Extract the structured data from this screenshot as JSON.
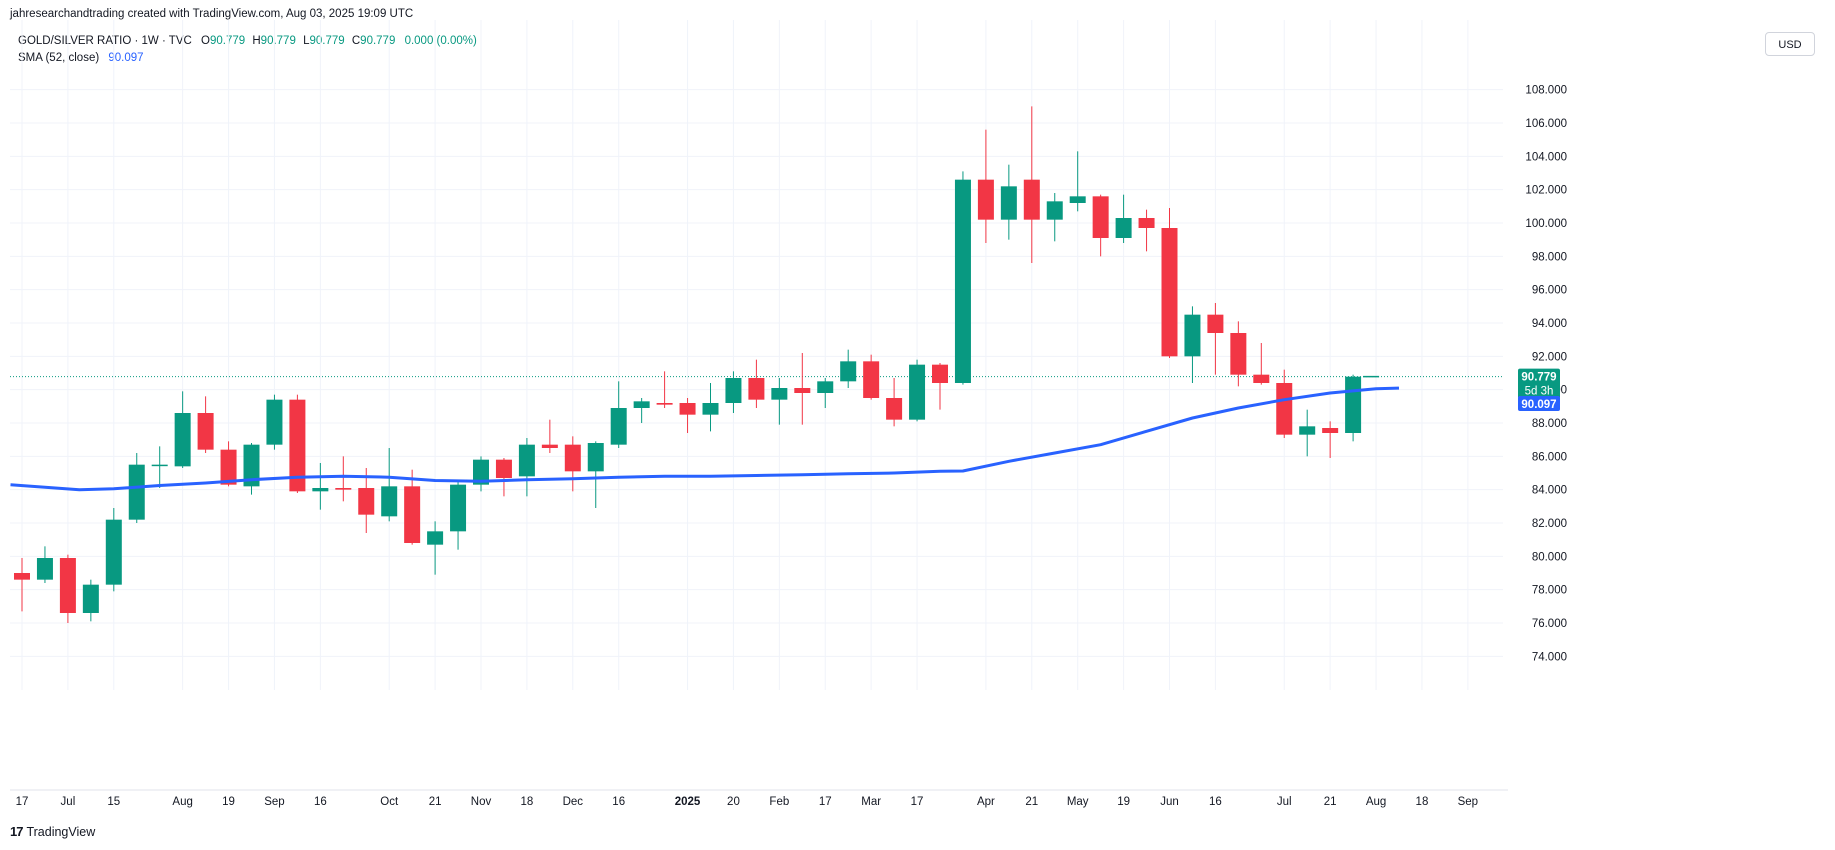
{
  "caption": "jahresearchandtrading created with TradingView.com, Aug 03, 2025 19:09 UTC",
  "legend": {
    "symbol": "GOLD/SILVER RATIO · 1W · TVC",
    "open_label": "O",
    "open": "90.779",
    "high_label": "H",
    "high": "90.779",
    "low_label": "L",
    "low": "90.779",
    "close_label": "C",
    "close": "90.779",
    "change": "0.000 (0.00%)",
    "sma_label": "SMA (52, close)",
    "sma_value": "90.097"
  },
  "currency": "USD",
  "footer": {
    "brand": "TradingView",
    "mark": "17"
  },
  "colors": {
    "up": "#089981",
    "down": "#f23645",
    "sma": "#2962ff",
    "grid": "#f0f3fa",
    "price_line": "#089981"
  },
  "chart_data": {
    "type": "candlestick",
    "timeframe": "1W",
    "ylim": [
      73,
      109
    ],
    "y_ticks": [
      74,
      76,
      78,
      80,
      82,
      84,
      86,
      88,
      90,
      92,
      94,
      96,
      98,
      100,
      102,
      104,
      106,
      108
    ],
    "y_tick_labels": [
      "74.000",
      "76.000",
      "78.000",
      "80.000",
      "82.000",
      "84.000",
      "86.000",
      "88.000",
      "90.000",
      "92.000",
      "94.000",
      "96.000",
      "98.000",
      "100.000",
      "102.000",
      "104.000",
      "106.000",
      "108.000"
    ],
    "x_tick_labels": [
      {
        "label": "17",
        "bar": 0
      },
      {
        "label": "Jul",
        "bar": 2
      },
      {
        "label": "15",
        "bar": 4
      },
      {
        "label": "Aug",
        "bar": 7
      },
      {
        "label": "19",
        "bar": 9
      },
      {
        "label": "Sep",
        "bar": 11
      },
      {
        "label": "16",
        "bar": 13
      },
      {
        "label": "Oct",
        "bar": 16
      },
      {
        "label": "21",
        "bar": 18
      },
      {
        "label": "Nov",
        "bar": 20
      },
      {
        "label": "18",
        "bar": 22
      },
      {
        "label": "Dec",
        "bar": 24
      },
      {
        "label": "16",
        "bar": 26
      },
      {
        "label": "2025",
        "bar": 29,
        "bold": true
      },
      {
        "label": "20",
        "bar": 31
      },
      {
        "label": "Feb",
        "bar": 33
      },
      {
        "label": "17",
        "bar": 35
      },
      {
        "label": "Mar",
        "bar": 37
      },
      {
        "label": "17",
        "bar": 39
      },
      {
        "label": "Apr",
        "bar": 42
      },
      {
        "label": "21",
        "bar": 44
      },
      {
        "label": "May",
        "bar": 46
      },
      {
        "label": "19",
        "bar": 48
      },
      {
        "label": "Jun",
        "bar": 50
      },
      {
        "label": "16",
        "bar": 52
      },
      {
        "label": "Jul",
        "bar": 55
      },
      {
        "label": "21",
        "bar": 57
      },
      {
        "label": "Aug",
        "bar": 59
      },
      {
        "label": "18",
        "bar": 61
      },
      {
        "label": "Sep",
        "bar": 63
      }
    ],
    "candles": [
      {
        "o": 79.0,
        "h": 79.9,
        "l": 76.7,
        "c": 78.6
      },
      {
        "o": 78.6,
        "h": 80.6,
        "l": 78.4,
        "c": 79.9
      },
      {
        "o": 79.9,
        "h": 80.1,
        "l": 76.0,
        "c": 76.6
      },
      {
        "o": 76.6,
        "h": 78.6,
        "l": 76.1,
        "c": 78.3
      },
      {
        "o": 78.3,
        "h": 82.9,
        "l": 77.9,
        "c": 82.2
      },
      {
        "o": 82.2,
        "h": 86.2,
        "l": 82.0,
        "c": 85.5
      },
      {
        "o": 85.5,
        "h": 86.6,
        "l": 84.1,
        "c": 85.5
      },
      {
        "o": 85.4,
        "h": 89.9,
        "l": 85.3,
        "c": 88.6
      },
      {
        "o": 88.6,
        "h": 89.6,
        "l": 86.2,
        "c": 86.4
      },
      {
        "o": 86.4,
        "h": 86.9,
        "l": 84.2,
        "c": 84.3
      },
      {
        "o": 84.2,
        "h": 86.8,
        "l": 83.7,
        "c": 86.7
      },
      {
        "o": 86.7,
        "h": 89.7,
        "l": 86.4,
        "c": 89.4
      },
      {
        "o": 89.4,
        "h": 89.7,
        "l": 83.8,
        "c": 83.9
      },
      {
        "o": 83.9,
        "h": 85.6,
        "l": 82.8,
        "c": 84.1
      },
      {
        "o": 84.1,
        "h": 86.0,
        "l": 83.3,
        "c": 84.0
      },
      {
        "o": 84.1,
        "h": 85.3,
        "l": 81.4,
        "c": 82.5
      },
      {
        "o": 82.4,
        "h": 86.5,
        "l": 82.1,
        "c": 84.2
      },
      {
        "o": 84.2,
        "h": 85.2,
        "l": 80.7,
        "c": 80.8
      },
      {
        "o": 80.7,
        "h": 82.1,
        "l": 78.9,
        "c": 81.5
      },
      {
        "o": 81.5,
        "h": 84.6,
        "l": 80.4,
        "c": 84.3
      },
      {
        "o": 84.3,
        "h": 86.0,
        "l": 83.9,
        "c": 85.8
      },
      {
        "o": 85.8,
        "h": 85.9,
        "l": 83.6,
        "c": 84.7
      },
      {
        "o": 84.8,
        "h": 87.1,
        "l": 83.6,
        "c": 86.7
      },
      {
        "o": 86.7,
        "h": 88.2,
        "l": 86.2,
        "c": 86.5
      },
      {
        "o": 86.7,
        "h": 87.2,
        "l": 83.9,
        "c": 85.1
      },
      {
        "o": 85.1,
        "h": 86.9,
        "l": 82.9,
        "c": 86.8
      },
      {
        "o": 86.7,
        "h": 90.5,
        "l": 86.5,
        "c": 88.9
      },
      {
        "o": 88.9,
        "h": 89.5,
        "l": 88.0,
        "c": 89.3
      },
      {
        "o": 89.2,
        "h": 91.1,
        "l": 88.9,
        "c": 89.1
      },
      {
        "o": 89.2,
        "h": 89.5,
        "l": 87.4,
        "c": 88.5
      },
      {
        "o": 88.5,
        "h": 90.4,
        "l": 87.5,
        "c": 89.2
      },
      {
        "o": 89.2,
        "h": 91.1,
        "l": 88.6,
        "c": 90.7
      },
      {
        "o": 90.7,
        "h": 91.8,
        "l": 88.9,
        "c": 89.4
      },
      {
        "o": 89.4,
        "h": 90.7,
        "l": 87.9,
        "c": 90.1
      },
      {
        "o": 90.1,
        "h": 92.2,
        "l": 87.9,
        "c": 89.8
      },
      {
        "o": 89.8,
        "h": 90.7,
        "l": 88.9,
        "c": 90.5
      },
      {
        "o": 90.5,
        "h": 92.4,
        "l": 90.1,
        "c": 91.7
      },
      {
        "o": 91.7,
        "h": 92.1,
        "l": 89.4,
        "c": 89.5
      },
      {
        "o": 89.5,
        "h": 90.7,
        "l": 87.8,
        "c": 88.2
      },
      {
        "o": 88.2,
        "h": 91.8,
        "l": 88.1,
        "c": 91.5
      },
      {
        "o": 91.5,
        "h": 91.6,
        "l": 88.8,
        "c": 90.4
      },
      {
        "o": 90.4,
        "h": 103.1,
        "l": 90.3,
        "c": 102.6
      },
      {
        "o": 102.6,
        "h": 105.6,
        "l": 98.8,
        "c": 100.2
      },
      {
        "o": 100.2,
        "h": 103.5,
        "l": 99.0,
        "c": 102.2
      },
      {
        "o": 102.6,
        "h": 107.0,
        "l": 97.6,
        "c": 100.2
      },
      {
        "o": 100.2,
        "h": 101.8,
        "l": 98.9,
        "c": 101.3
      },
      {
        "o": 101.2,
        "h": 104.3,
        "l": 100.7,
        "c": 101.6
      },
      {
        "o": 101.6,
        "h": 101.7,
        "l": 98.0,
        "c": 99.1
      },
      {
        "o": 99.1,
        "h": 101.7,
        "l": 98.8,
        "c": 100.3
      },
      {
        "o": 100.3,
        "h": 100.8,
        "l": 98.3,
        "c": 99.7
      },
      {
        "o": 99.7,
        "h": 100.9,
        "l": 91.9,
        "c": 92.0
      },
      {
        "o": 92.0,
        "h": 95.0,
        "l": 90.4,
        "c": 94.5
      },
      {
        "o": 94.5,
        "h": 95.2,
        "l": 90.9,
        "c": 93.4
      },
      {
        "o": 93.4,
        "h": 94.1,
        "l": 90.2,
        "c": 90.9
      },
      {
        "o": 90.9,
        "h": 92.8,
        "l": 90.3,
        "c": 90.4
      },
      {
        "o": 90.4,
        "h": 91.2,
        "l": 87.1,
        "c": 87.3
      },
      {
        "o": 87.3,
        "h": 88.8,
        "l": 86.0,
        "c": 87.8
      },
      {
        "o": 87.7,
        "h": 88.1,
        "l": 85.9,
        "c": 87.4
      },
      {
        "o": 87.4,
        "h": 90.9,
        "l": 86.9,
        "c": 90.779
      }
    ],
    "sma": {
      "name": "SMA (52, close)",
      "points": [
        {
          "bar": -0.5,
          "v": 84.3
        },
        {
          "bar": 1,
          "v": 84.15
        },
        {
          "bar": 2.5,
          "v": 84.0
        },
        {
          "bar": 4,
          "v": 84.05
        },
        {
          "bar": 6,
          "v": 84.25
        },
        {
          "bar": 8,
          "v": 84.4
        },
        {
          "bar": 10,
          "v": 84.6
        },
        {
          "bar": 12,
          "v": 84.75
        },
        {
          "bar": 14,
          "v": 84.8
        },
        {
          "bar": 16,
          "v": 84.75
        },
        {
          "bar": 18,
          "v": 84.55
        },
        {
          "bar": 20,
          "v": 84.5
        },
        {
          "bar": 22,
          "v": 84.6
        },
        {
          "bar": 24,
          "v": 84.65
        },
        {
          "bar": 26,
          "v": 84.75
        },
        {
          "bar": 28,
          "v": 84.8
        },
        {
          "bar": 30,
          "v": 84.8
        },
        {
          "bar": 32,
          "v": 84.85
        },
        {
          "bar": 34,
          "v": 84.9
        },
        {
          "bar": 36,
          "v": 84.95
        },
        {
          "bar": 38,
          "v": 85.0
        },
        {
          "bar": 40,
          "v": 85.1
        },
        {
          "bar": 41,
          "v": 85.12
        },
        {
          "bar": 43,
          "v": 85.7
        },
        {
          "bar": 45,
          "v": 86.2
        },
        {
          "bar": 47,
          "v": 86.7
        },
        {
          "bar": 49,
          "v": 87.5
        },
        {
          "bar": 51,
          "v": 88.3
        },
        {
          "bar": 53,
          "v": 88.9
        },
        {
          "bar": 55,
          "v": 89.4
        },
        {
          "bar": 57,
          "v": 89.8
        },
        {
          "bar": 59,
          "v": 90.05
        },
        {
          "bar": 60,
          "v": 90.097
        }
      ]
    },
    "last_price": 90.779,
    "last_price_label": "90.779",
    "countdown_label": "5d 3h",
    "sma_last_label": "90.097",
    "grid": true
  }
}
